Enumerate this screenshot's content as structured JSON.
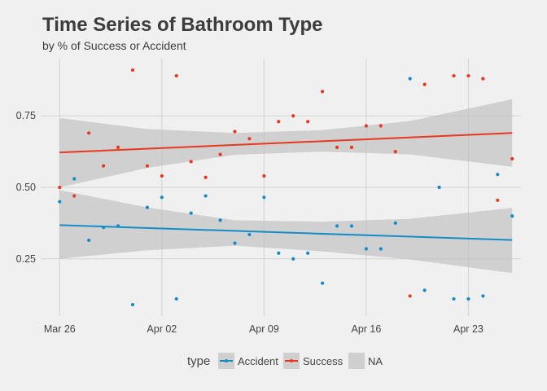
{
  "chart_data": {
    "type": "scatter",
    "title": "Time Series of Bathroom Type",
    "subtitle": "by % of Success or Accident",
    "xlabel": "",
    "ylabel": "",
    "x_tick_labels": [
      "Mar 26",
      "Apr 02",
      "Apr 09",
      "Apr 16",
      "Apr 23"
    ],
    "x_tick_days": [
      0,
      7,
      14,
      21,
      28
    ],
    "xlim_days": [
      -1.3,
      31.6
    ],
    "y_ticks": [
      0.25,
      0.5,
      0.75
    ],
    "y_tick_labels": [
      "0.25",
      "0.50",
      "0.75"
    ],
    "ylim": [
      0.05,
      0.95
    ],
    "grid": true,
    "legend": {
      "title": "type",
      "position": "bottom",
      "entries": [
        "Accident",
        "Success",
        "NA"
      ]
    },
    "series": [
      {
        "name": "Success",
        "color": "#e8381e",
        "points": [
          [
            0,
            0.5
          ],
          [
            1,
            0.47
          ],
          [
            2,
            0.69
          ],
          [
            3,
            0.575
          ],
          [
            4,
            0.64
          ],
          [
            5,
            0.91
          ],
          [
            6,
            0.575
          ],
          [
            7,
            0.54
          ],
          [
            8,
            0.89
          ],
          [
            9,
            0.59
          ],
          [
            10,
            0.535
          ],
          [
            11,
            0.615
          ],
          [
            12,
            0.695
          ],
          [
            13,
            0.67
          ],
          [
            14,
            0.54
          ],
          [
            15,
            0.73
          ],
          [
            16,
            0.75
          ],
          [
            17,
            0.73
          ],
          [
            18,
            0.835
          ],
          [
            19,
            0.64
          ],
          [
            20,
            0.64
          ],
          [
            21,
            0.715
          ],
          [
            22,
            0.715
          ],
          [
            23,
            0.625
          ],
          [
            24,
            0.12
          ],
          [
            25,
            0.86
          ],
          [
            26,
            0.5
          ],
          [
            27,
            0.89
          ],
          [
            28,
            0.89
          ],
          [
            29,
            0.88
          ],
          [
            30,
            0.455
          ],
          [
            31,
            0.6
          ]
        ],
        "trend": [
          [
            0,
            0.622
          ],
          [
            31,
            0.69
          ]
        ],
        "band_upper": [
          [
            0,
            0.742
          ],
          [
            6,
            0.704
          ],
          [
            12,
            0.69
          ],
          [
            18,
            0.7
          ],
          [
            24,
            0.732
          ],
          [
            31,
            0.808
          ]
        ],
        "band_lower": [
          [
            0,
            0.5
          ],
          [
            6,
            0.568
          ],
          [
            12,
            0.614
          ],
          [
            18,
            0.625
          ],
          [
            24,
            0.615
          ],
          [
            31,
            0.572
          ]
        ]
      },
      {
        "name": "Accident",
        "color": "#158bc8",
        "points": [
          [
            0,
            0.45
          ],
          [
            1,
            0.53
          ],
          [
            2,
            0.315
          ],
          [
            3,
            0.36
          ],
          [
            4,
            0.365
          ],
          [
            5,
            0.09
          ],
          [
            6,
            0.43
          ],
          [
            7,
            0.465
          ],
          [
            8,
            0.11
          ],
          [
            9,
            0.41
          ],
          [
            10,
            0.47
          ],
          [
            11,
            0.385
          ],
          [
            12,
            0.305
          ],
          [
            13,
            0.335
          ],
          [
            14,
            0.465
          ],
          [
            15,
            0.27
          ],
          [
            16,
            0.25
          ],
          [
            17,
            0.27
          ],
          [
            18,
            0.165
          ],
          [
            19,
            0.365
          ],
          [
            20,
            0.365
          ],
          [
            21,
            0.285
          ],
          [
            22,
            0.285
          ],
          [
            23,
            0.375
          ],
          [
            24,
            0.88
          ],
          [
            25,
            0.14
          ],
          [
            26,
            0.5
          ],
          [
            27,
            0.11
          ],
          [
            28,
            0.11
          ],
          [
            29,
            0.12
          ],
          [
            30,
            0.545
          ],
          [
            31,
            0.4
          ]
        ],
        "trend": [
          [
            0,
            0.368
          ],
          [
            31,
            0.316
          ]
        ],
        "band_upper": [
          [
            0,
            0.49
          ],
          [
            6,
            0.43
          ],
          [
            12,
            0.385
          ],
          [
            18,
            0.38
          ],
          [
            24,
            0.39
          ],
          [
            31,
            0.428
          ]
        ],
        "band_lower": [
          [
            0,
            0.25
          ],
          [
            6,
            0.28
          ],
          [
            12,
            0.296
          ],
          [
            18,
            0.276
          ],
          [
            24,
            0.248
          ],
          [
            31,
            0.2
          ]
        ]
      }
    ]
  }
}
